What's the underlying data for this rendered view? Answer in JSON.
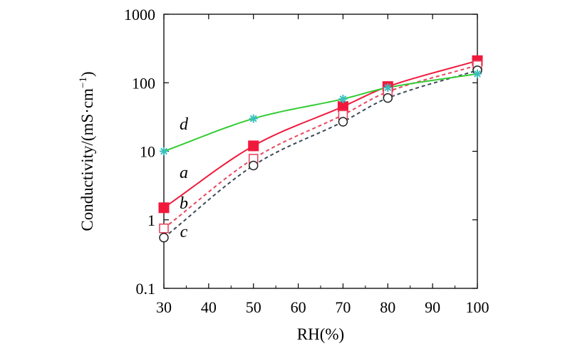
{
  "chart_data": {
    "type": "line",
    "title": "",
    "xlabel": "RH(%)",
    "ylabel": "Conductivity/(mS·cm",
    "ylabel_sup": "−1",
    "ylabel_close": ")",
    "xlim": [
      30,
      100
    ],
    "ylim": [
      0.1,
      1000
    ],
    "yscale": "log",
    "x_ticks": [
      30,
      40,
      50,
      60,
      70,
      80,
      90,
      100
    ],
    "x_tick_labels": [
      "30",
      "40",
      "50",
      "60",
      "70",
      "80",
      "90",
      "100"
    ],
    "y_ticks": [
      0.1,
      1,
      10,
      100,
      1000
    ],
    "y_tick_labels": [
      "0.1",
      "1",
      "10",
      "100",
      "1000"
    ],
    "grid": false,
    "series": [
      {
        "name": "a",
        "label": "a",
        "x": [
          30,
          50,
          70,
          80,
          100
        ],
        "y": [
          1.5,
          12,
          45,
          88,
          210
        ],
        "color": "#f0193c",
        "marker": "filled-square",
        "line": "solid"
      },
      {
        "name": "b",
        "label": "b",
        "x": [
          30,
          50,
          70,
          80,
          100
        ],
        "y": [
          0.75,
          7.8,
          34,
          74,
          180
        ],
        "color": "#e8475f",
        "marker": "open-square",
        "line": "dashed"
      },
      {
        "name": "c",
        "label": "c",
        "x": [
          30,
          50,
          70,
          80,
          100
        ],
        "y": [
          0.55,
          6.2,
          27,
          60,
          152
        ],
        "color": "#3c4a55",
        "marker": "open-circle",
        "line": "dashed"
      },
      {
        "name": "d",
        "label": "d",
        "x": [
          30,
          50,
          70,
          80,
          100
        ],
        "y": [
          10,
          30,
          58,
          85,
          135
        ],
        "color": "#33cc33",
        "marker": "asterisk",
        "line": "solid",
        "marker_color": "#3bbfbf"
      }
    ]
  }
}
